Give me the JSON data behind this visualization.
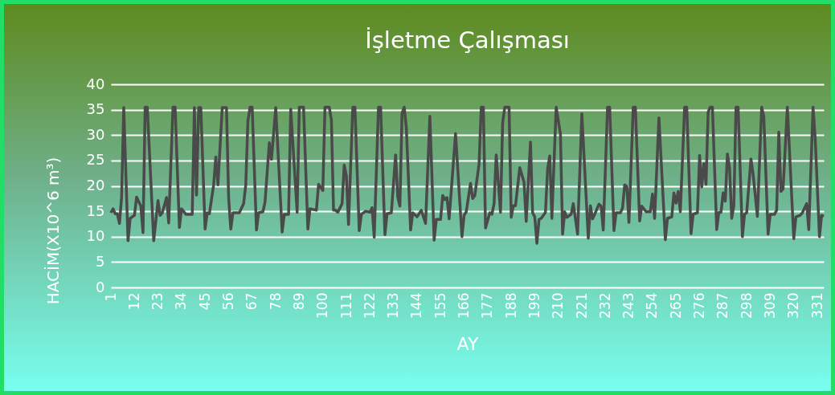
{
  "chart_data": {
    "type": "line",
    "title": "İşletme Çalışması",
    "xlabel": "AY",
    "ylabel": "HACİM(X10^6 m³)",
    "xlim": [
      1,
      334
    ],
    "xticks": [
      1,
      12,
      23,
      34,
      45,
      56,
      67,
      78,
      89,
      100,
      111,
      122,
      133,
      144,
      155,
      166,
      177,
      188,
      199,
      210,
      221,
      232,
      243,
      254,
      265,
      276,
      287,
      298,
      309,
      320,
      331
    ],
    "ylim": [
      0,
      40
    ],
    "yticks": [
      0,
      5,
      10,
      15,
      20,
      25,
      30,
      35,
      40
    ],
    "grid": "y",
    "marker": "none",
    "line_style": "solid",
    "series": [
      {
        "color": "#4a4a4a",
        "x": [
          1,
          2,
          3,
          4,
          5,
          6,
          7,
          9,
          10,
          12,
          13,
          15,
          16,
          17,
          18,
          21,
          23,
          24,
          25,
          27,
          28,
          30,
          31,
          33,
          34,
          36,
          39,
          40,
          41,
          42,
          43,
          45,
          46,
          47,
          49,
          50,
          51,
          53,
          55,
          56,
          57,
          58,
          61,
          63,
          64,
          65,
          66,
          67,
          69,
          70,
          72,
          73,
          75,
          76,
          78,
          81,
          82,
          84,
          85,
          88,
          89,
          91,
          93,
          94,
          97,
          98,
          100,
          101,
          103,
          104,
          105,
          106,
          107,
          109,
          110,
          111,
          112,
          114,
          115,
          117,
          118,
          120,
          122,
          123,
          124,
          126,
          127,
          129,
          130,
          132,
          134,
          135,
          136,
          137,
          138,
          139,
          141,
          142,
          144,
          146,
          148,
          150,
          152,
          153,
          155,
          156,
          157,
          158,
          159,
          162,
          165,
          166,
          167,
          169,
          170,
          171,
          173,
          174,
          175,
          176,
          178,
          179,
          180,
          181,
          183,
          184,
          185,
          187,
          188,
          189,
          190,
          192,
          194,
          195,
          197,
          198,
          199,
          200,
          201,
          202,
          204,
          205,
          206,
          207,
          209,
          211,
          212,
          213,
          214,
          216,
          217,
          219,
          221,
          224,
          225,
          226,
          227,
          229,
          230,
          231,
          233,
          234,
          236,
          237,
          239,
          240,
          241,
          242,
          243,
          245,
          246,
          248,
          249,
          251,
          253,
          254,
          255,
          257,
          260,
          261,
          263,
          264,
          265,
          266,
          267,
          269,
          270,
          272,
          273,
          275,
          276,
          277,
          278,
          279,
          280,
          281,
          282,
          284,
          285,
          286,
          287,
          288,
          289,
          290,
          291,
          292,
          293,
          294,
          296,
          297,
          298,
          300,
          301,
          303,
          305,
          306,
          308,
          309,
          311,
          312,
          313,
          314,
          315,
          317,
          320,
          321,
          323,
          324,
          326,
          327,
          329,
          330,
          332,
          333,
          334
        ],
        "values": [
          14.7,
          15.5,
          14.5,
          14.5,
          12.6,
          17.8,
          35.4,
          9.2,
          13.6,
          14.2,
          17.8,
          16,
          10.8,
          35.5,
          35.5,
          9.2,
          17.1,
          14.2,
          14.7,
          17.7,
          12.7,
          35.5,
          35.5,
          11.8,
          15.5,
          14.4,
          14.4,
          35.4,
          18.2,
          35.4,
          35.4,
          11.5,
          14.7,
          14.5,
          20.2,
          25.7,
          20.2,
          35.4,
          35.4,
          17.6,
          11.5,
          14.7,
          14.7,
          16.5,
          20.2,
          32.8,
          35.5,
          35.5,
          11.3,
          14.7,
          14.9,
          16.8,
          28.5,
          25.2,
          35.4,
          10.9,
          14.4,
          14.4,
          35.1,
          14.8,
          35.5,
          35.5,
          11.5,
          15.5,
          15.2,
          20.3,
          19.1,
          35.5,
          35.5,
          33,
          15.2,
          15.2,
          14.8,
          16.5,
          24.1,
          22,
          12.4,
          35.5,
          35.5,
          11.2,
          14.4,
          15,
          14.8,
          15.7,
          9.9,
          35.5,
          35.5,
          10.4,
          14.5,
          14.7,
          26.1,
          17.8,
          16,
          34.3,
          35.5,
          31.5,
          11.3,
          14.7,
          13.9,
          15.2,
          12.6,
          33.7,
          9.3,
          13.4,
          13.4,
          18.1,
          17.3,
          17.7,
          13.5,
          30.3,
          10,
          14.2,
          14.9,
          20.5,
          17.5,
          18.1,
          24.4,
          35.5,
          35.5,
          11.7,
          14.7,
          14.4,
          16.5,
          26.1,
          14.8,
          32.5,
          35.5,
          35.5,
          13.8,
          16.1,
          16.1,
          23.6,
          20.7,
          13,
          28.6,
          14.7,
          13.9,
          8.7,
          13.4,
          13.6,
          14.8,
          23.3,
          25.9,
          13.6,
          35.5,
          30.2,
          10.5,
          14.9,
          13.8,
          14.4,
          16.5,
          10.5,
          34.2,
          9.7,
          16.1,
          13.5,
          14.4,
          16.4,
          16,
          11.3,
          35.5,
          35.5,
          11.2,
          14.7,
          14.7,
          15.6,
          20.2,
          19.9,
          12.8,
          35.5,
          35.5,
          13.1,
          16,
          14.9,
          14.9,
          18.4,
          13.6,
          33.4,
          9.4,
          13.6,
          13.9,
          18.6,
          16.6,
          18.9,
          14.9,
          35.5,
          35.5,
          10.6,
          14.4,
          14.7,
          26,
          19.8,
          24.4,
          20.3,
          34.5,
          35.5,
          35.5,
          11.4,
          14.8,
          14.8,
          18.6,
          17,
          26.3,
          23.6,
          13.6,
          16,
          35.5,
          35.5,
          10,
          14.4,
          14.7,
          25.3,
          22.3,
          14,
          35.5,
          33.6,
          10.5,
          14.4,
          14.4,
          15.2,
          30.6,
          18.9,
          19.4,
          35.5,
          9.6,
          13.9,
          14.2,
          14.7,
          16.5,
          11.4,
          35.5,
          29.4,
          10,
          14.2,
          14
        ]
      }
    ]
  }
}
